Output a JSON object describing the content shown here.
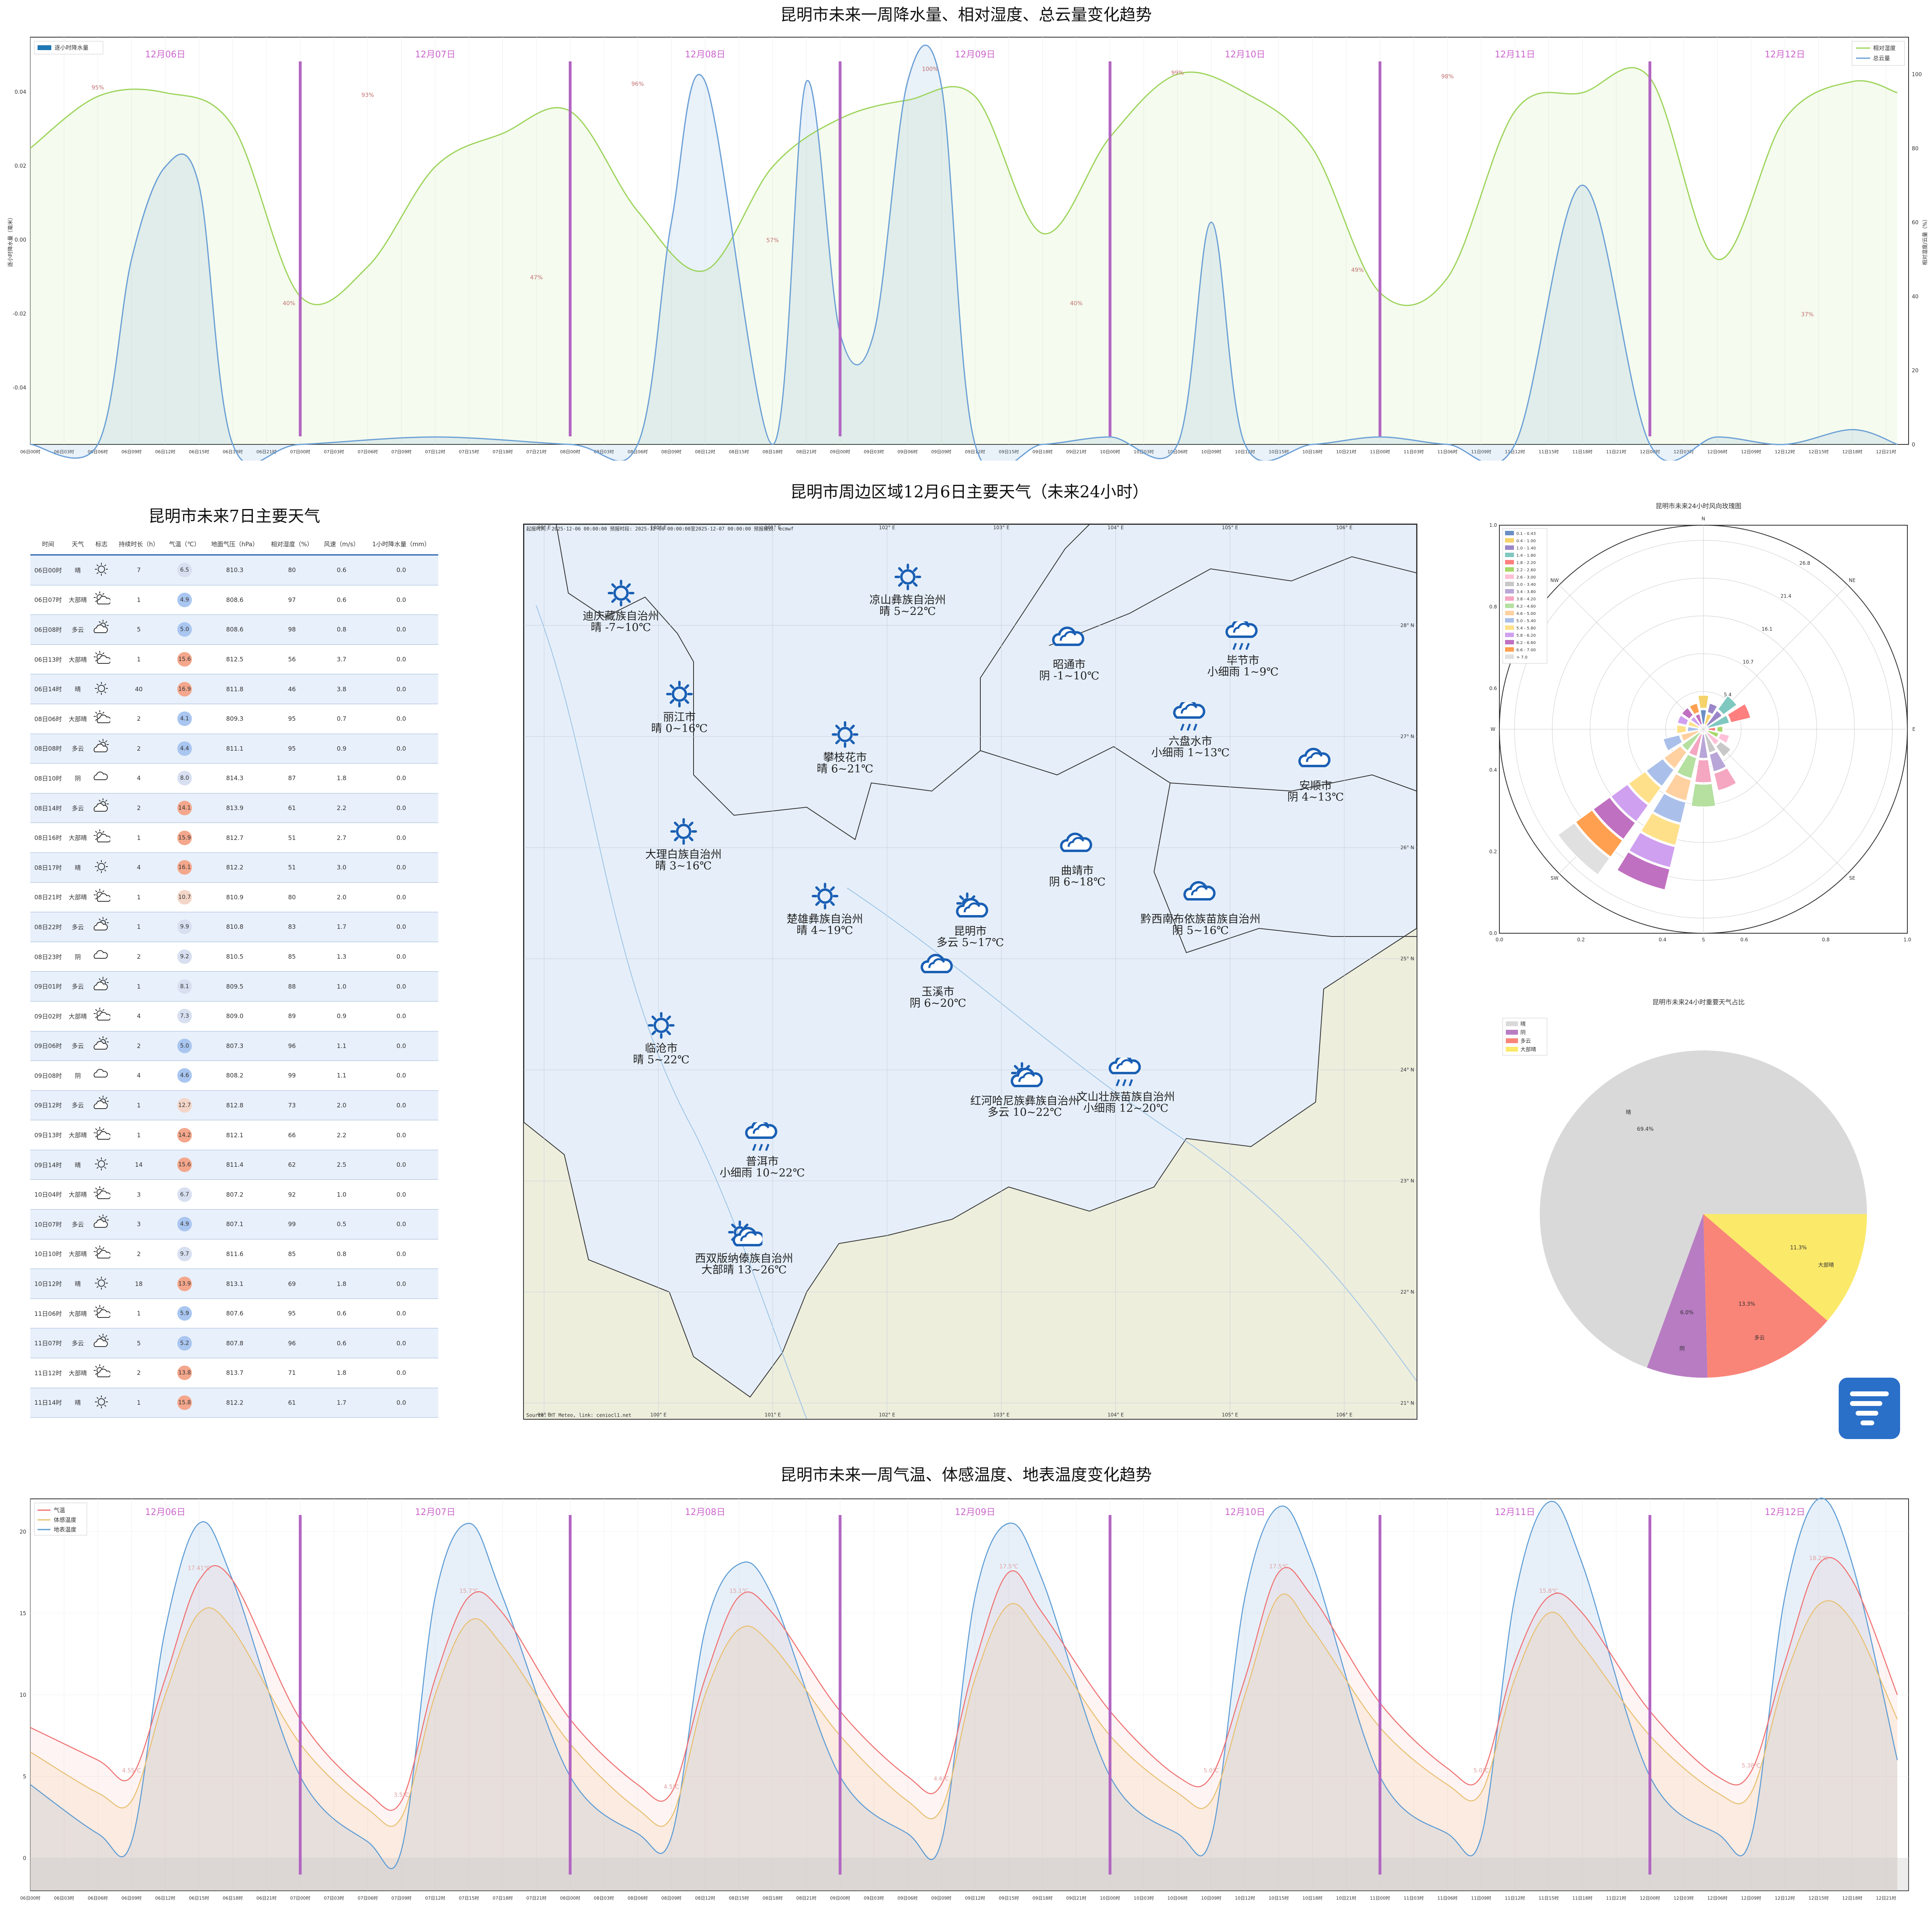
{
  "titles": {
    "top": "昆明市未来一周降水量、相对湿度、总云量变化趋势",
    "middle_map": "昆明市周边区域12月6日主要天气（未来24小时）",
    "table": "昆明市未来7日主要天气",
    "bottom": "昆明市未来一周气温、体感温度、地表温度变化趋势",
    "rose": "昆明市未来24小时风向玫瑰图",
    "pie": "昆明市未来24小时重要天气占比"
  },
  "days": [
    "12月06日",
    "12月07日",
    "12月08日",
    "12月09日",
    "12月10日",
    "12月11日",
    "12月12日"
  ],
  "colors": {
    "rh": "#9cd45a",
    "cloud": "#6a9fd6",
    "rain": "#1f77b4",
    "temp": "#f07070",
    "feel": "#e8c070",
    "ground": "#5b9bd5",
    "daybar": "#b266c2",
    "daylabel": "#cc66cc"
  },
  "chart_top": {
    "legend_left": "逐小时降水量",
    "legend_right": [
      "相对湿度",
      "总云量"
    ],
    "ylabel_left": "逐小时降水量（毫米）",
    "ylabel_right": "相对湿度/云量（%）",
    "left_ticks": [
      "0.04",
      "0.02",
      "0.00",
      "-0.02",
      "-0.04"
    ],
    "right_ticks": [
      "100",
      "80",
      "60",
      "40",
      "20",
      "0"
    ],
    "rh_labels": [
      "95%",
      "40%",
      "93%",
      "47%",
      "96%",
      "57%",
      "100%",
      "40%",
      "99%",
      "49%",
      "98%",
      "37%"
    ],
    "x_ticks": [
      "06日00时",
      "06日03时",
      "06日06时",
      "06日09时",
      "06日12时",
      "06日15时",
      "06日18时",
      "06日21时",
      "07日00时",
      "07日03时",
      "07日06时",
      "07日09时",
      "07日12时",
      "07日15时",
      "07日18时",
      "07日21时",
      "08日00时",
      "08日03时",
      "08日06时",
      "08日09时",
      "08日12时",
      "08日15时",
      "08日18时",
      "08日21时",
      "09日00时",
      "09日03时",
      "09日06时",
      "09日09时",
      "09日12时",
      "09日15时",
      "09日18时",
      "09日21时",
      "10日00时",
      "10日03时",
      "10日06时",
      "10日09时",
      "10日12时",
      "10日15时",
      "10日18时",
      "10日21时",
      "11日00时",
      "11日03时",
      "11日06时",
      "11日09时",
      "11日12时",
      "11日15时",
      "11日18时",
      "11日21时",
      "12日00时",
      "12日03时",
      "12日06时",
      "12日09时",
      "12日12时",
      "12日15时",
      "12日18时",
      "12日21时"
    ]
  },
  "chart_data": [
    {
      "type": "line",
      "title": "昆明市未来一周降水量、相对湿度、总云量变化趋势",
      "x_unit": "hours from 06日00时",
      "series": [
        {
          "name": "相对湿度",
          "x": [
            0,
            6,
            12,
            18,
            24,
            30,
            36,
            42,
            48,
            54,
            60,
            66,
            72,
            78,
            84,
            90,
            96,
            102,
            108,
            114,
            120,
            126,
            132,
            138,
            144,
            150,
            156,
            162,
            166
          ],
          "y": [
            80,
            94,
            95,
            86,
            40,
            48,
            75,
            84,
            90,
            63,
            47,
            75,
            88,
            93,
            94,
            57,
            83,
            100,
            95,
            80,
            41,
            45,
            90,
            95,
            99,
            50,
            88,
            98,
            95
          ]
        },
        {
          "name": "总云量",
          "x": [
            0,
            6,
            9,
            12,
            15,
            18,
            24,
            36,
            48,
            54,
            57,
            60,
            66,
            69,
            72,
            75,
            78,
            81,
            84,
            90,
            96,
            102,
            105,
            108,
            114,
            120,
            126,
            132,
            138,
            144,
            150,
            156,
            162,
            166
          ],
          "y": [
            0,
            0,
            50,
            75,
            70,
            0,
            0,
            2,
            0,
            0,
            60,
            98,
            0,
            98,
            30,
            30,
            98,
            97,
            0,
            0,
            2,
            0,
            60,
            0,
            0,
            2,
            0,
            0,
            70,
            0,
            2,
            0,
            4,
            0
          ]
        }
      ],
      "yaxis_left_ticks": [
        "0.04",
        "0.02",
        "0.00",
        "-0.02",
        "-0.04"
      ],
      "yaxis_right_ticks": [
        "100",
        "80",
        "60",
        "40",
        "20",
        "0"
      ]
    },
    {
      "type": "line",
      "title": "昆明市未来一周气温、体感温度、地表温度变化趋势",
      "ylim": [
        -2,
        22
      ],
      "series": [
        {
          "name": "气温",
          "x": [
            0,
            6,
            9,
            12,
            15,
            18,
            24,
            30,
            33,
            36,
            39,
            42,
            48,
            54,
            57,
            60,
            63,
            66,
            72,
            78,
            81,
            84,
            87,
            90,
            96,
            102,
            105,
            108,
            111,
            114,
            120,
            126,
            129,
            132,
            135,
            138,
            144,
            150,
            153,
            156,
            159,
            162,
            166
          ],
          "y": [
            8,
            6,
            5,
            11,
            17,
            17,
            8.5,
            4,
            3.5,
            11,
            16,
            15,
            8.5,
            4.5,
            4,
            11,
            16,
            15,
            9,
            5,
            4.5,
            12,
            17.5,
            15,
            9,
            5,
            5,
            11,
            17.5,
            16,
            9.5,
            5.5,
            5,
            12,
            16,
            15,
            9,
            5,
            5.3,
            12,
            18,
            17,
            10
          ]
        },
        {
          "name": "体感温度",
          "x": [
            0,
            6,
            9,
            12,
            15,
            18,
            24,
            30,
            33,
            36,
            39,
            42,
            48,
            54,
            57,
            60,
            63,
            66,
            72,
            78,
            81,
            84,
            87,
            90,
            96,
            102,
            105,
            108,
            111,
            114,
            120,
            126,
            129,
            132,
            135,
            138,
            144,
            150,
            153,
            156,
            159,
            162,
            166
          ],
          "y": [
            6.5,
            4,
            3.5,
            10,
            15,
            14,
            7,
            3,
            2.5,
            10,
            14.5,
            13,
            7,
            3,
            2.5,
            10,
            14,
            13,
            7.5,
            3.5,
            3,
            11,
            15.5,
            13.5,
            7.5,
            4,
            3.5,
            10,
            16,
            14,
            8,
            4.5,
            4,
            11,
            15,
            13,
            7.5,
            4,
            4,
            11,
            15.5,
            14.5,
            8.5
          ]
        },
        {
          "name": "地表温度",
          "x": [
            0,
            6,
            9,
            12,
            15,
            18,
            24,
            30,
            33,
            36,
            39,
            42,
            48,
            54,
            57,
            60,
            63,
            66,
            72,
            78,
            81,
            84,
            87,
            90,
            96,
            102,
            105,
            108,
            111,
            114,
            120,
            126,
            129,
            132,
            135,
            138,
            144,
            150,
            153,
            156,
            159,
            162,
            166
          ],
          "y": [
            4.5,
            1.5,
            1,
            14,
            20.5,
            17,
            5,
            1,
            0.5,
            16,
            20.5,
            16,
            5,
            1.5,
            1.3,
            14,
            18,
            16,
            5,
            1.5,
            1,
            16,
            20.5,
            17,
            5,
            1.5,
            1.3,
            16,
            21.5,
            18,
            5,
            1.5,
            1.3,
            16,
            21.8,
            18,
            5,
            1.5,
            1.3,
            16,
            22,
            18,
            6
          ]
        }
      ],
      "y_ticks": [
        "0",
        "5",
        "10",
        "15",
        "20"
      ],
      "peak_labels": [
        "17.41℃",
        "4.55℃",
        "15.7℃",
        "3.5℃",
        "15.1℃",
        "4.5℃",
        "17.5℃",
        "4.6℃",
        "17.5℃",
        "5.0℃",
        "15.8℃",
        "5.0℃",
        "18.2℃",
        "5.38℃"
      ]
    },
    {
      "type": "pie",
      "title": "昆明市未来24小时重要天气占比",
      "labels": [
        "晴",
        "阴",
        "多云",
        "大部晴"
      ],
      "values": [
        69.4,
        6.0,
        13.3,
        11.3
      ],
      "value_labels": [
        "69.4%",
        "6.0%",
        "13.3%",
        "11.3%"
      ],
      "colors": [
        "#d9d9d9",
        "#b77cc2",
        "#f98578",
        "#fbe96a"
      ]
    },
    {
      "type": "bar",
      "title": "昆明市未来24小时风向玫瑰图",
      "radial_ticks": [
        "5.4",
        "10.7",
        "16.1",
        "21.4",
        "26.8"
      ],
      "directions": [
        "N",
        "NE",
        "E",
        "SE",
        "S",
        "SW",
        "W",
        "NW"
      ],
      "legend": [
        "0.1 - 0.43",
        "0.4 - 1.00",
        "1.0 - 1.40",
        "1.4 - 1.80",
        "1.8 - 2.20",
        "2.2 - 2.60",
        "2.6 - 3.00",
        "3.0 - 3.40",
        "3.4 - 3.80",
        "3.8 - 4.20",
        "4.2 - 4.60",
        "4.6 - 5.00",
        "5.0 - 5.40",
        "5.4 - 5.80",
        "5.8 - 6.20",
        "6.2 - 6.60",
        "6.6 - 7.00",
        "> 7.0"
      ],
      "sectors": [
        {
          "dir": 0,
          "value": 4
        },
        {
          "dir": 22.5,
          "value": 3
        },
        {
          "dir": 45,
          "value": 5
        },
        {
          "dir": 67.5,
          "value": 6
        },
        {
          "dir": 90,
          "value": 2
        },
        {
          "dir": 112.5,
          "value": 3
        },
        {
          "dir": 135,
          "value": 4
        },
        {
          "dir": 157.5,
          "value": 8
        },
        {
          "dir": 180,
          "value": 10
        },
        {
          "dir": 202.5,
          "value": 22
        },
        {
          "dir": 225,
          "value": 24
        },
        {
          "dir": 247.5,
          "value": 5
        },
        {
          "dir": 270,
          "value": 3
        },
        {
          "dir": 292.5,
          "value": 3
        },
        {
          "dir": 315,
          "value": 3
        },
        {
          "dir": 337.5,
          "value": 3
        }
      ]
    }
  ],
  "table": {
    "headers": [
      "时间",
      "天气",
      "标志",
      "持续时长（h）",
      "气温（℃）",
      "地面气压（hPa）",
      "相对湿度（%）",
      "风速（m/s）",
      "1小时降水量（mm）"
    ],
    "rows": [
      [
        "06日00时",
        "晴",
        "sun",
        "7",
        "6.5",
        "810.3",
        "80",
        "0.6",
        "0.0"
      ],
      [
        "06日07时",
        "大部晴",
        "sun-cloud",
        "1",
        "4.9",
        "808.6",
        "97",
        "0.6",
        "0.0"
      ],
      [
        "06日08时",
        "多云",
        "cloud-sun",
        "5",
        "5.0",
        "808.6",
        "98",
        "0.8",
        "0.0"
      ],
      [
        "06日13时",
        "大部晴",
        "sun-cloud",
        "1",
        "15.6",
        "812.5",
        "56",
        "3.7",
        "0.0"
      ],
      [
        "06日14时",
        "晴",
        "sun",
        "40",
        "16.9",
        "811.8",
        "46",
        "3.8",
        "0.0"
      ],
      [
        "08日06时",
        "大部晴",
        "sun-cloud",
        "2",
        "4.1",
        "809.3",
        "95",
        "0.7",
        "0.0"
      ],
      [
        "08日08时",
        "多云",
        "cloud-sun",
        "2",
        "4.4",
        "811.1",
        "95",
        "0.9",
        "0.0"
      ],
      [
        "08日10时",
        "阴",
        "cloud",
        "4",
        "8.0",
        "814.3",
        "87",
        "1.8",
        "0.0"
      ],
      [
        "08日14时",
        "多云",
        "cloud-sun",
        "2",
        "14.1",
        "813.9",
        "61",
        "2.2",
        "0.0"
      ],
      [
        "08日16时",
        "大部晴",
        "sun-cloud",
        "1",
        "15.9",
        "812.7",
        "51",
        "2.7",
        "0.0"
      ],
      [
        "08日17时",
        "晴",
        "sun",
        "4",
        "16.1",
        "812.2",
        "51",
        "3.0",
        "0.0"
      ],
      [
        "08日21时",
        "大部晴",
        "sun-cloud",
        "1",
        "10.7",
        "810.9",
        "80",
        "2.0",
        "0.0"
      ],
      [
        "08日22时",
        "多云",
        "cloud-sun",
        "1",
        "9.9",
        "810.8",
        "83",
        "1.7",
        "0.0"
      ],
      [
        "08日23时",
        "阴",
        "cloud",
        "2",
        "9.2",
        "810.5",
        "85",
        "1.3",
        "0.0"
      ],
      [
        "09日01时",
        "多云",
        "cloud-sun",
        "1",
        "8.1",
        "809.5",
        "88",
        "1.0",
        "0.0"
      ],
      [
        "09日02时",
        "大部晴",
        "sun-cloud",
        "4",
        "7.3",
        "809.0",
        "89",
        "0.9",
        "0.0"
      ],
      [
        "09日06时",
        "多云",
        "cloud-sun",
        "2",
        "5.0",
        "807.3",
        "96",
        "1.1",
        "0.0"
      ],
      [
        "09日08时",
        "阴",
        "cloud",
        "4",
        "4.6",
        "808.2",
        "99",
        "1.1",
        "0.0"
      ],
      [
        "09日12时",
        "多云",
        "cloud-sun",
        "1",
        "12.7",
        "812.8",
        "73",
        "2.0",
        "0.0"
      ],
      [
        "09日13时",
        "大部晴",
        "sun-cloud",
        "1",
        "14.2",
        "812.1",
        "66",
        "2.2",
        "0.0"
      ],
      [
        "09日14时",
        "晴",
        "sun",
        "14",
        "15.6",
        "811.4",
        "62",
        "2.5",
        "0.0"
      ],
      [
        "10日04时",
        "大部晴",
        "sun-cloud",
        "3",
        "6.7",
        "807.2",
        "92",
        "1.0",
        "0.0"
      ],
      [
        "10日07时",
        "多云",
        "cloud-sun",
        "3",
        "4.9",
        "807.1",
        "99",
        "0.5",
        "0.0"
      ],
      [
        "10日10时",
        "大部晴",
        "sun-cloud",
        "2",
        "9.7",
        "811.6",
        "85",
        "0.8",
        "0.0"
      ],
      [
        "10日12时",
        "晴",
        "sun",
        "18",
        "13.9",
        "813.1",
        "69",
        "1.8",
        "0.0"
      ],
      [
        "11日06时",
        "大部晴",
        "sun-cloud",
        "1",
        "5.9",
        "807.6",
        "95",
        "0.6",
        "0.0"
      ],
      [
        "11日07时",
        "多云",
        "cloud-sun",
        "5",
        "5.2",
        "807.8",
        "96",
        "0.6",
        "0.0"
      ],
      [
        "11日12时",
        "大部晴",
        "sun-cloud",
        "2",
        "13.8",
        "813.7",
        "71",
        "1.8",
        "0.0"
      ],
      [
        "11日14时",
        "晴",
        "sun",
        "1",
        "15.8",
        "812.2",
        "61",
        "1.7",
        "0.0"
      ]
    ]
  },
  "map": {
    "header": "起报时间: 2025-12-06 00:00:00 预报时段: 2025-12-06 00:00:00至2025-12-07 00:00:00 预报模式: ecmwf",
    "footer": "Source: HT Meteo, link: ceniocl1.net",
    "lon_ticks": [
      "99° E",
      "100° E",
      "101° E",
      "102° E",
      "103° E",
      "104° E",
      "105° E",
      "106° E"
    ],
    "lat_ticks": [
      "28° N",
      "27° N",
      "26° N",
      "25° N",
      "24° N",
      "23° N",
      "22° N",
      "21° N"
    ],
    "cities": [
      {
        "name": "迪庆藏族自治州",
        "wx": "晴 -7~10℃",
        "icon": "sun",
        "x": 240,
        "y": 210
      },
      {
        "name": "凉山彝族自治州",
        "wx": "晴 5~22℃",
        "icon": "sun",
        "x": 950,
        "y": 170
      },
      {
        "name": "丽江市",
        "wx": "晴 0~16℃",
        "icon": "sun",
        "x": 385,
        "y": 460
      },
      {
        "name": "攀枝花市",
        "wx": "晴 6~21℃",
        "icon": "sun",
        "x": 795,
        "y": 560
      },
      {
        "name": "昭通市",
        "wx": "阴 -1~10℃",
        "icon": "cloud",
        "x": 1350,
        "y": 330
      },
      {
        "name": "毕节市",
        "wx": "小细雨 1~9℃",
        "icon": "rain",
        "x": 1780,
        "y": 320
      },
      {
        "name": "六盘水市",
        "wx": "小细雨 1~13℃",
        "icon": "rain",
        "x": 1650,
        "y": 520
      },
      {
        "name": "安顺市",
        "wx": "阴 4~13℃",
        "icon": "cloud",
        "x": 1960,
        "y": 630
      },
      {
        "name": "大理白族自治州",
        "wx": "晴 3~16℃",
        "icon": "sun",
        "x": 395,
        "y": 800
      },
      {
        "name": "曲靖市",
        "wx": "阴 6~18℃",
        "icon": "cloud",
        "x": 1370,
        "y": 840
      },
      {
        "name": "楚雄彝族自治州",
        "wx": "晴 4~19℃",
        "icon": "sun",
        "x": 745,
        "y": 960
      },
      {
        "name": "昆明市",
        "wx": "多云 5~17℃",
        "icon": "cloud-sun",
        "x": 1105,
        "y": 990
      },
      {
        "name": "黔西南布依族苗族自治州",
        "wx": "阴 5~16℃",
        "icon": "cloud",
        "x": 1675,
        "y": 960
      },
      {
        "name": "玉溪市",
        "wx": "阴 6~20℃",
        "icon": "cloud",
        "x": 1025,
        "y": 1140
      },
      {
        "name": "临沧市",
        "wx": "晴 5~22℃",
        "icon": "sun",
        "x": 340,
        "y": 1280
      },
      {
        "name": "红河哈尼族彝族自治州",
        "wx": "多云 10~22℃",
        "icon": "cloud-sun",
        "x": 1240,
        "y": 1410
      },
      {
        "name": "文山壮族苗族自治州",
        "wx": "小细雨 12~20℃",
        "icon": "rain",
        "x": 1490,
        "y": 1400
      },
      {
        "name": "普洱市",
        "wx": "小细雨 10~22℃",
        "icon": "rain",
        "x": 590,
        "y": 1560
      },
      {
        "name": "西双版纳傣族自治州",
        "wx": "大部晴 13~26℃",
        "icon": "sun-cloud",
        "x": 545,
        "y": 1800
      }
    ]
  }
}
